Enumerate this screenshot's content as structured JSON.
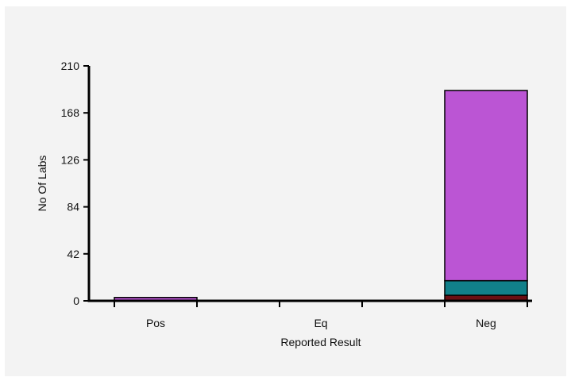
{
  "chart_data": {
    "type": "bar",
    "stacked": true,
    "categories": [
      "Pos",
      "Eq",
      "Neg"
    ],
    "xlabel": "Reported Result",
    "ylabel": "No Of Labs",
    "ylim": [
      0,
      210
    ],
    "yticks": [
      0,
      42,
      84,
      126,
      168,
      210
    ],
    "grid": false,
    "legend": "none",
    "series": [
      {
        "color": "#6b0f14",
        "values": [
          0,
          0,
          5
        ]
      },
      {
        "color": "#11808a",
        "values": [
          0,
          0,
          13
        ]
      },
      {
        "color": "#bb55d4",
        "values": [
          3,
          0,
          170
        ]
      }
    ]
  }
}
